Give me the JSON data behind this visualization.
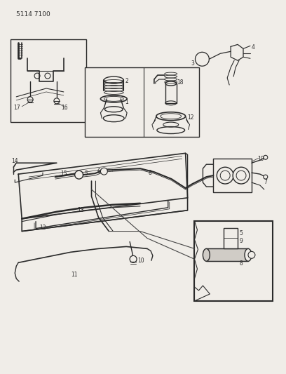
{
  "title_code": "5114 7100",
  "bg_color": "#f0ede8",
  "line_color": "#2a2a2a",
  "fig_width": 4.08,
  "fig_height": 5.33,
  "dpi": 100
}
